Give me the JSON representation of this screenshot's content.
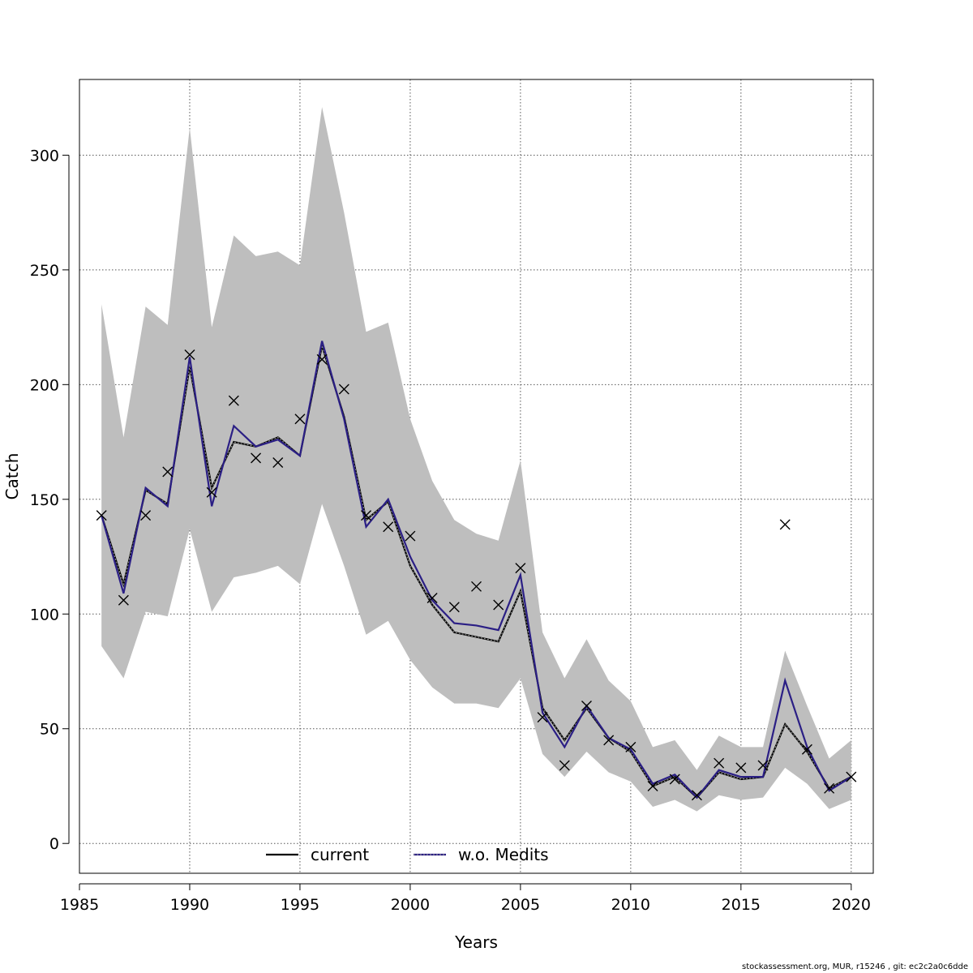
{
  "chart_data": {
    "type": "line",
    "title": "",
    "xlabel": "Years",
    "ylabel": "Catch",
    "xlim": [
      1985,
      2021
    ],
    "ylim": [
      -13,
      333
    ],
    "grid": true,
    "x_ticks": [
      1985,
      1990,
      1995,
      2000,
      2005,
      2010,
      2015,
      2020
    ],
    "y_ticks": [
      0,
      50,
      100,
      150,
      200,
      250,
      300
    ],
    "x": [
      1986,
      1987,
      1988,
      1989,
      1990,
      1991,
      1992,
      1993,
      1994,
      1995,
      1996,
      1997,
      1998,
      1999,
      2000,
      2001,
      2002,
      2003,
      2004,
      2005,
      2006,
      2007,
      2008,
      2009,
      2010,
      2011,
      2012,
      2013,
      2014,
      2015,
      2016,
      2017,
      2018,
      2019,
      2020
    ],
    "band": {
      "upper": [
        235,
        177,
        234,
        226,
        312,
        225,
        265,
        256,
        258,
        252,
        321,
        275,
        223,
        227,
        185,
        158,
        141,
        135,
        132,
        167,
        92,
        72,
        89,
        71,
        62,
        42,
        45,
        32,
        47,
        42,
        42,
        84,
        60,
        37,
        45
      ],
      "lower": [
        86,
        72,
        101,
        99,
        137,
        101,
        116,
        118,
        121,
        113,
        148,
        121,
        91,
        97,
        80,
        68,
        61,
        61,
        59,
        72,
        39,
        29,
        40,
        31,
        27,
        16,
        19,
        14,
        21,
        19,
        20,
        33,
        26,
        15,
        19
      ]
    },
    "series": [
      {
        "name": "current",
        "color": "#000000",
        "values": [
          143,
          113,
          154,
          148,
          208,
          155,
          175,
          173,
          177,
          169,
          217,
          186,
          141,
          149,
          121,
          104,
          92,
          90,
          88,
          110,
          59,
          45,
          59,
          46,
          40,
          25,
          29,
          20,
          31,
          28,
          29,
          52,
          40,
          24,
          29
        ]
      },
      {
        "name": "w.o. Medits",
        "color": "#2b1f85",
        "values": [
          143,
          109,
          155,
          147,
          212,
          147,
          182,
          173,
          176,
          169,
          219,
          185,
          138,
          150,
          125,
          106,
          96,
          95,
          93,
          117,
          57,
          42,
          60,
          46,
          41,
          26,
          30,
          20,
          32,
          29,
          29,
          71,
          42,
          23,
          29
        ]
      }
    ],
    "observed": {
      "marker": "x",
      "values": [
        143,
        106,
        143,
        162,
        213,
        153,
        193,
        168,
        166,
        185,
        211,
        198,
        143,
        138,
        134,
        107,
        103,
        112,
        104,
        120,
        55,
        34,
        60,
        45,
        42,
        25,
        28,
        21,
        35,
        33,
        34,
        139,
        41,
        24,
        29
      ]
    },
    "legend": {
      "position": "bottom-center",
      "entries": [
        "current",
        "w.o. Medits"
      ]
    }
  },
  "footer": "stockassessment.org, MUR, r15246 , git: ec2c2a0c6dde"
}
